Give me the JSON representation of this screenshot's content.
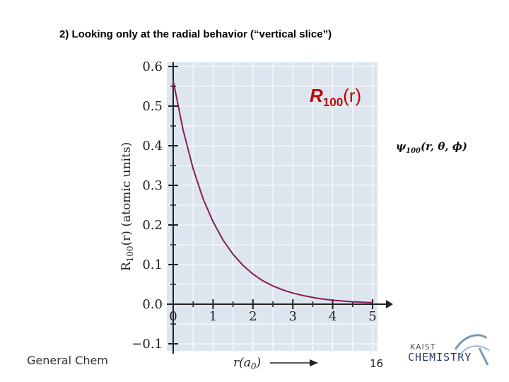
{
  "slide": {
    "title": "2) Looking only at the radial behavior (“vertical slice”)",
    "footer_left": "General Chem",
    "page_number": "16",
    "logo_top": "KAIST",
    "logo_bottom": "CHEMISTRY"
  },
  "psi_label": {
    "main": "ψ",
    "sub": "100",
    "args": "(r, θ, ϕ)"
  },
  "chart_data": {
    "type": "line",
    "series_label": {
      "main": "R",
      "sub": "100",
      "rest": "(r)"
    },
    "ylabel": {
      "main": "R",
      "sub": "100",
      "rest": "(r) (atomic units)"
    },
    "xlabel": {
      "main": "r(a",
      "sub": "0",
      "rest": ")"
    },
    "xlim": [
      0,
      5
    ],
    "ylim": [
      -0.1,
      0.6
    ],
    "x_ticks": [
      "0",
      "1",
      "2",
      "3",
      "4",
      "5"
    ],
    "y_ticks": [
      "0.6",
      "0.5",
      "0.4",
      "0.3",
      "0.2",
      "0.1",
      "0.0",
      "−0.1"
    ],
    "grid": true,
    "series": [
      {
        "color": "#8b1a5c",
        "x": [
          0,
          0.25,
          0.5,
          0.75,
          1.0,
          1.25,
          1.5,
          1.75,
          2.0,
          2.25,
          2.5,
          2.75,
          3.0,
          3.25,
          3.5,
          3.75,
          4.0,
          4.25,
          4.5,
          4.75,
          5.0
        ],
        "y": [
          0.564,
          0.439,
          0.342,
          0.266,
          0.208,
          0.162,
          0.126,
          0.098,
          0.076,
          0.059,
          0.046,
          0.036,
          0.028,
          0.022,
          0.017,
          0.013,
          0.01,
          0.008,
          0.006,
          0.005,
          0.004
        ]
      }
    ]
  }
}
